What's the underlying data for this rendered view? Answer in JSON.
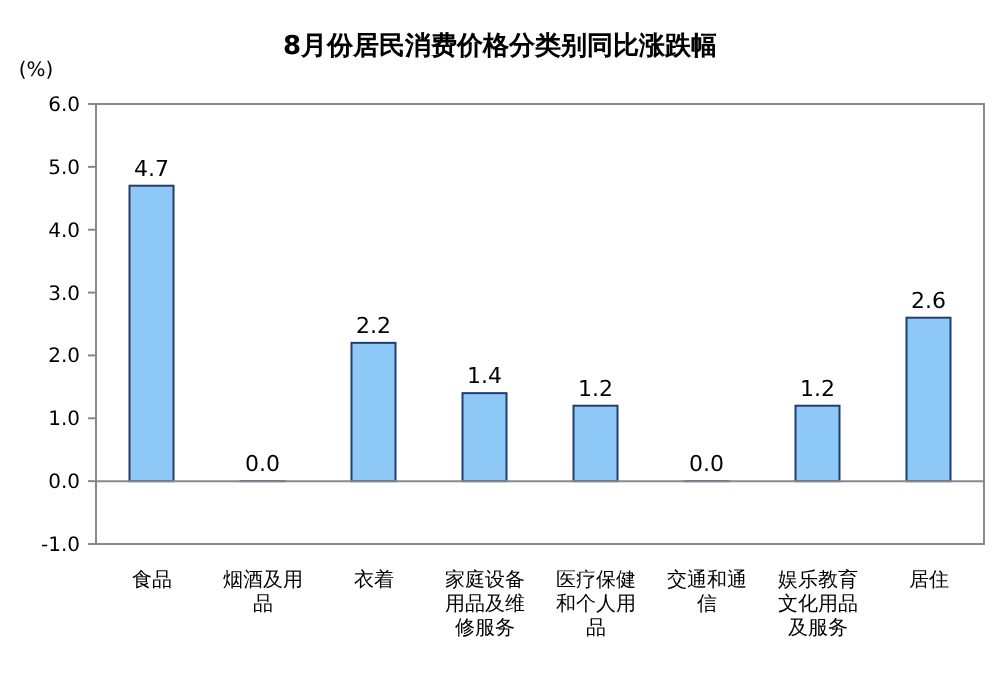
{
  "chart_data": {
    "type": "bar",
    "title": "8月份居民消费价格分类别同比涨跌幅",
    "ylabel": "(%)",
    "categories": [
      "食品",
      "烟酒及用品",
      "衣着",
      "家庭设备用品及维修服务",
      "医疗保健和个人用品",
      "交通和通信",
      "娱乐教育文化用品及服务",
      "居住"
    ],
    "values": [
      4.7,
      0.0,
      2.2,
      1.4,
      1.2,
      0.0,
      1.2,
      2.6
    ],
    "value_labels": [
      "4.7",
      "0.0",
      "2.2",
      "1.4",
      "1.2",
      "0.0",
      "1.2",
      "2.6"
    ],
    "color": "#8ec8f6",
    "ylim": [
      -1,
      6
    ],
    "yticks": [
      {
        "value": -1,
        "label": "-1.0"
      },
      {
        "value": 0,
        "label": "0.0"
      },
      {
        "value": 1,
        "label": "1.0"
      },
      {
        "value": 2,
        "label": "2.0"
      },
      {
        "value": 3,
        "label": "3.0"
      },
      {
        "value": 4,
        "label": "4.0"
      },
      {
        "value": 5,
        "label": "5.0"
      },
      {
        "value": 6,
        "label": "6.0"
      }
    ]
  }
}
